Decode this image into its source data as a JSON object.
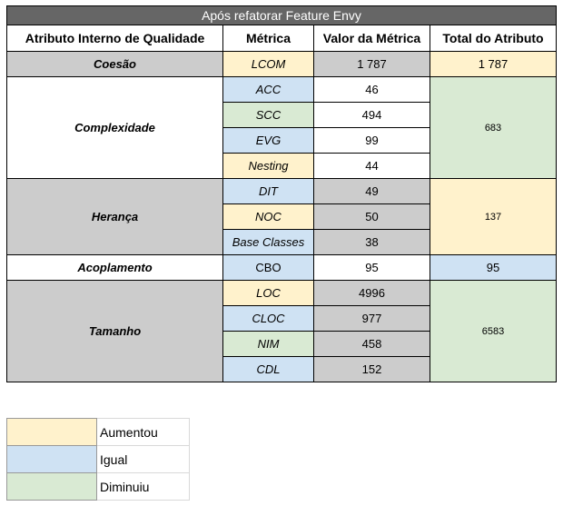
{
  "table": {
    "title": "Após refatorar Feature Envy",
    "headers": [
      "Atributo Interno de Qualidade",
      "Métrica",
      "Valor da Métrica",
      "Total do Atributo"
    ],
    "groups": [
      {
        "attribute": "Coesão",
        "total": "1 787",
        "metrics": [
          {
            "name": "LCOM",
            "value": "1 787"
          }
        ]
      },
      {
        "attribute": "Complexidade",
        "total": "683",
        "metrics": [
          {
            "name": "ACC",
            "value": "46"
          },
          {
            "name": "SCC",
            "value": "494"
          },
          {
            "name": "EVG",
            "value": "99"
          },
          {
            "name": "Nesting",
            "value": "44"
          }
        ]
      },
      {
        "attribute": "Herança",
        "total": "137",
        "metrics": [
          {
            "name": "DIT",
            "value": "49"
          },
          {
            "name": "NOC",
            "value": "50"
          },
          {
            "name": "Base Classes",
            "value": "38"
          }
        ]
      },
      {
        "attribute": "Acoplamento",
        "total": "95",
        "metrics": [
          {
            "name": "CBO",
            "value": "95"
          }
        ]
      },
      {
        "attribute": "Tamanho",
        "total": "6583",
        "metrics": [
          {
            "name": "LOC",
            "value": "4996"
          },
          {
            "name": "CLOC",
            "value": "977"
          },
          {
            "name": "NIM",
            "value": "458"
          },
          {
            "name": "CDL",
            "value": "152"
          }
        ]
      }
    ]
  },
  "legend": [
    {
      "label": "Aumentou",
      "color": "#fff2cc"
    },
    {
      "label": "Igual",
      "color": "#cfe2f3"
    },
    {
      "label": "Diminuiu",
      "color": "#d9ead3"
    }
  ],
  "colors": {
    "increased": "#fff2cc",
    "equal": "#cfe2f3",
    "decreased": "#d9ead3",
    "group_gray": "#cccccc",
    "title_bar": "#666666"
  }
}
